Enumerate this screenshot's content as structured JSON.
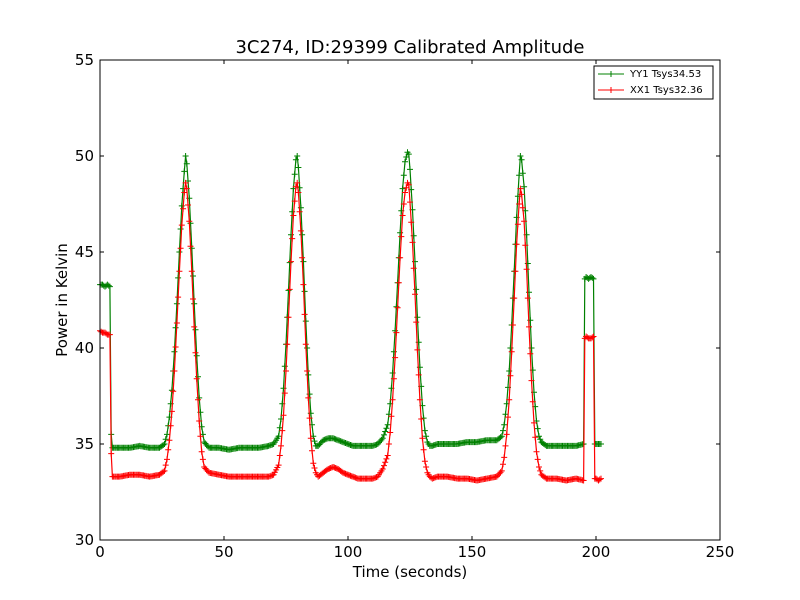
{
  "chart_data": {
    "type": "line",
    "title": "3C274, ID:29399 Calibrated Amplitude",
    "xlabel": "Time (seconds)",
    "ylabel": "Power in Kelvin",
    "xlim": [
      0,
      250
    ],
    "ylim": [
      30,
      55
    ],
    "xticks": [
      0,
      50,
      100,
      150,
      200,
      250
    ],
    "yticks": [
      30,
      35,
      40,
      45,
      50,
      55
    ],
    "grid": false,
    "legend_position": "top-right",
    "legend": [
      "YY1 Tsys34.53",
      "XX1 Tsys32.36"
    ],
    "series": [
      {
        "name": "YY1 Tsys34.53",
        "color": "#008000",
        "marker": "+",
        "baseline": 34.9,
        "segments": [
          {
            "x": [
              0,
              1,
              2,
              3,
              4
            ],
            "y": [
              43.3,
              43.3,
              43.2,
              43.3,
              43.2
            ]
          },
          {
            "x": [
              4.5,
              5,
              8,
              12,
              16,
              20,
              24,
              26,
              27,
              28,
              29,
              30,
              31,
              32,
              33,
              34,
              34.5,
              35,
              36,
              37,
              38,
              39,
              40,
              41,
              42,
              44,
              48,
              52,
              56,
              60,
              64,
              68,
              70,
              72,
              73,
              74,
              75,
              76,
              77,
              78,
              79,
              79.5,
              80,
              81,
              82,
              83,
              84,
              85,
              86,
              87,
              88,
              90,
              92,
              94,
              96,
              98,
              100,
              102,
              104,
              106,
              108,
              110,
              112,
              114,
              116,
              117,
              118,
              119,
              120,
              121,
              122,
              123,
              124,
              124.5,
              125,
              126,
              127,
              128,
              129,
              130,
              131,
              132,
              133,
              134,
              136,
              140,
              144,
              148,
              152,
              156,
              160,
              162,
              163,
              164,
              165,
              166,
              167,
              168,
              169,
              169.5,
              170,
              171,
              172,
              173,
              174,
              175,
              176,
              177,
              178,
              179,
              180,
              184,
              188,
              192,
              195
            ],
            "y": [
              35.5,
              34.8,
              34.8,
              34.8,
              34.9,
              34.8,
              34.8,
              35.0,
              35.5,
              36.4,
              37.8,
              39.8,
              42.3,
              45.0,
              47.4,
              49.2,
              50.0,
              49.6,
              47.8,
              45.2,
              42.3,
              39.6,
              37.4,
              35.9,
              35.1,
              34.8,
              34.8,
              34.7,
              34.8,
              34.8,
              34.8,
              34.9,
              35.0,
              35.4,
              36.3,
              37.9,
              40.2,
              43.0,
              45.9,
              48.3,
              49.8,
              50.0,
              49.4,
              47.3,
              44.5,
              41.4,
              38.6,
              36.6,
              35.4,
              34.9,
              34.9,
              35.2,
              35.3,
              35.3,
              35.2,
              35.1,
              35.0,
              34.9,
              34.9,
              34.9,
              34.9,
              34.9,
              35.0,
              35.3,
              36.0,
              37.1,
              38.7,
              40.9,
              43.4,
              46.0,
              48.3,
              49.7,
              50.2,
              50.1,
              49.3,
              47.2,
              44.5,
              41.6,
              39.0,
              37.0,
              35.7,
              35.1,
              34.9,
              34.9,
              35.0,
              35.0,
              35.0,
              35.1,
              35.1,
              35.2,
              35.2,
              35.4,
              36.0,
              37.1,
              38.8,
              41.2,
              44.0,
              46.8,
              49.0,
              50.0,
              49.8,
              48.4,
              45.9,
              42.9,
              40.0,
              37.7,
              36.2,
              35.4,
              35.1,
              35.0,
              34.9,
              34.9,
              34.9,
              34.9,
              35.0
            ]
          },
          {
            "x": [
              195.5,
              196,
              197,
              198,
              199
            ],
            "y": [
              43.6,
              43.7,
              43.6,
              43.7,
              43.6
            ]
          },
          {
            "x": [
              199.5,
              200,
              201,
              202
            ],
            "y": [
              35.0,
              35.0,
              35.0,
              35.0
            ]
          }
        ]
      },
      {
        "name": "XX1 Tsys32.36",
        "color": "#ff0000",
        "marker": "+",
        "baseline": 33.3,
        "segments": [
          {
            "x": [
              0,
              1,
              2,
              3,
              4
            ],
            "y": [
              40.9,
              40.8,
              40.8,
              40.7,
              40.7
            ]
          },
          {
            "x": [
              4.5,
              5,
              8,
              12,
              16,
              20,
              24,
              26,
              27,
              28,
              29,
              30,
              31,
              32,
              33,
              34,
              34.5,
              35,
              36,
              37,
              38,
              39,
              40,
              41,
              42,
              44,
              48,
              52,
              56,
              60,
              64,
              68,
              70,
              72,
              73,
              74,
              75,
              76,
              77,
              78,
              79,
              79.5,
              80,
              81,
              82,
              83,
              84,
              85,
              86,
              87,
              88,
              90,
              92,
              94,
              96,
              98,
              100,
              102,
              104,
              106,
              108,
              110,
              112,
              114,
              116,
              117,
              118,
              119,
              120,
              121,
              122,
              123,
              124,
              124.5,
              125,
              126,
              127,
              128,
              129,
              130,
              131,
              132,
              133,
              134,
              136,
              140,
              144,
              148,
              152,
              156,
              160,
              162,
              163,
              164,
              165,
              166,
              167,
              168,
              169,
              169.5,
              170,
              171,
              172,
              173,
              174,
              175,
              176,
              177,
              178,
              179,
              180,
              184,
              188,
              192,
              195
            ],
            "y": [
              34.5,
              33.3,
              33.3,
              33.4,
              33.4,
              33.3,
              33.4,
              33.6,
              34.2,
              35.2,
              36.7,
              38.8,
              41.3,
              44.0,
              46.4,
              48.1,
              48.6,
              48.3,
              46.6,
              44.0,
              41.1,
              38.4,
              36.2,
              34.6,
              33.8,
              33.5,
              33.4,
              33.3,
              33.3,
              33.3,
              33.3,
              33.3,
              33.4,
              33.9,
              34.9,
              36.5,
              38.8,
              41.6,
              44.5,
              46.9,
              48.4,
              48.6,
              48.1,
              46.1,
              43.3,
              40.2,
              37.4,
              35.3,
              34.0,
              33.5,
              33.3,
              33.5,
              33.7,
              33.8,
              33.7,
              33.5,
              33.4,
              33.3,
              33.2,
              33.2,
              33.2,
              33.2,
              33.3,
              33.7,
              34.4,
              35.6,
              37.3,
              39.5,
              42.1,
              44.7,
              46.9,
              48.1,
              48.6,
              48.5,
              47.6,
              45.5,
              42.8,
              39.9,
              37.3,
              35.3,
              34.1,
              33.5,
              33.3,
              33.2,
              33.3,
              33.3,
              33.2,
              33.2,
              33.1,
              33.2,
              33.3,
              33.6,
              34.3,
              35.5,
              37.3,
              39.8,
              42.6,
              45.4,
              47.5,
              48.3,
              48.0,
              46.6,
              44.1,
              41.1,
              38.3,
              36.1,
              34.6,
              33.8,
              33.4,
              33.3,
              33.2,
              33.2,
              33.1,
              33.2,
              33.1
            ]
          },
          {
            "x": [
              195.5,
              196,
              197,
              198,
              199
            ],
            "y": [
              40.5,
              40.6,
              40.5,
              40.5,
              40.6
            ]
          },
          {
            "x": [
              199.5,
              200,
              201,
              202
            ],
            "y": [
              33.2,
              33.2,
              33.1,
              33.2
            ]
          }
        ]
      }
    ]
  }
}
